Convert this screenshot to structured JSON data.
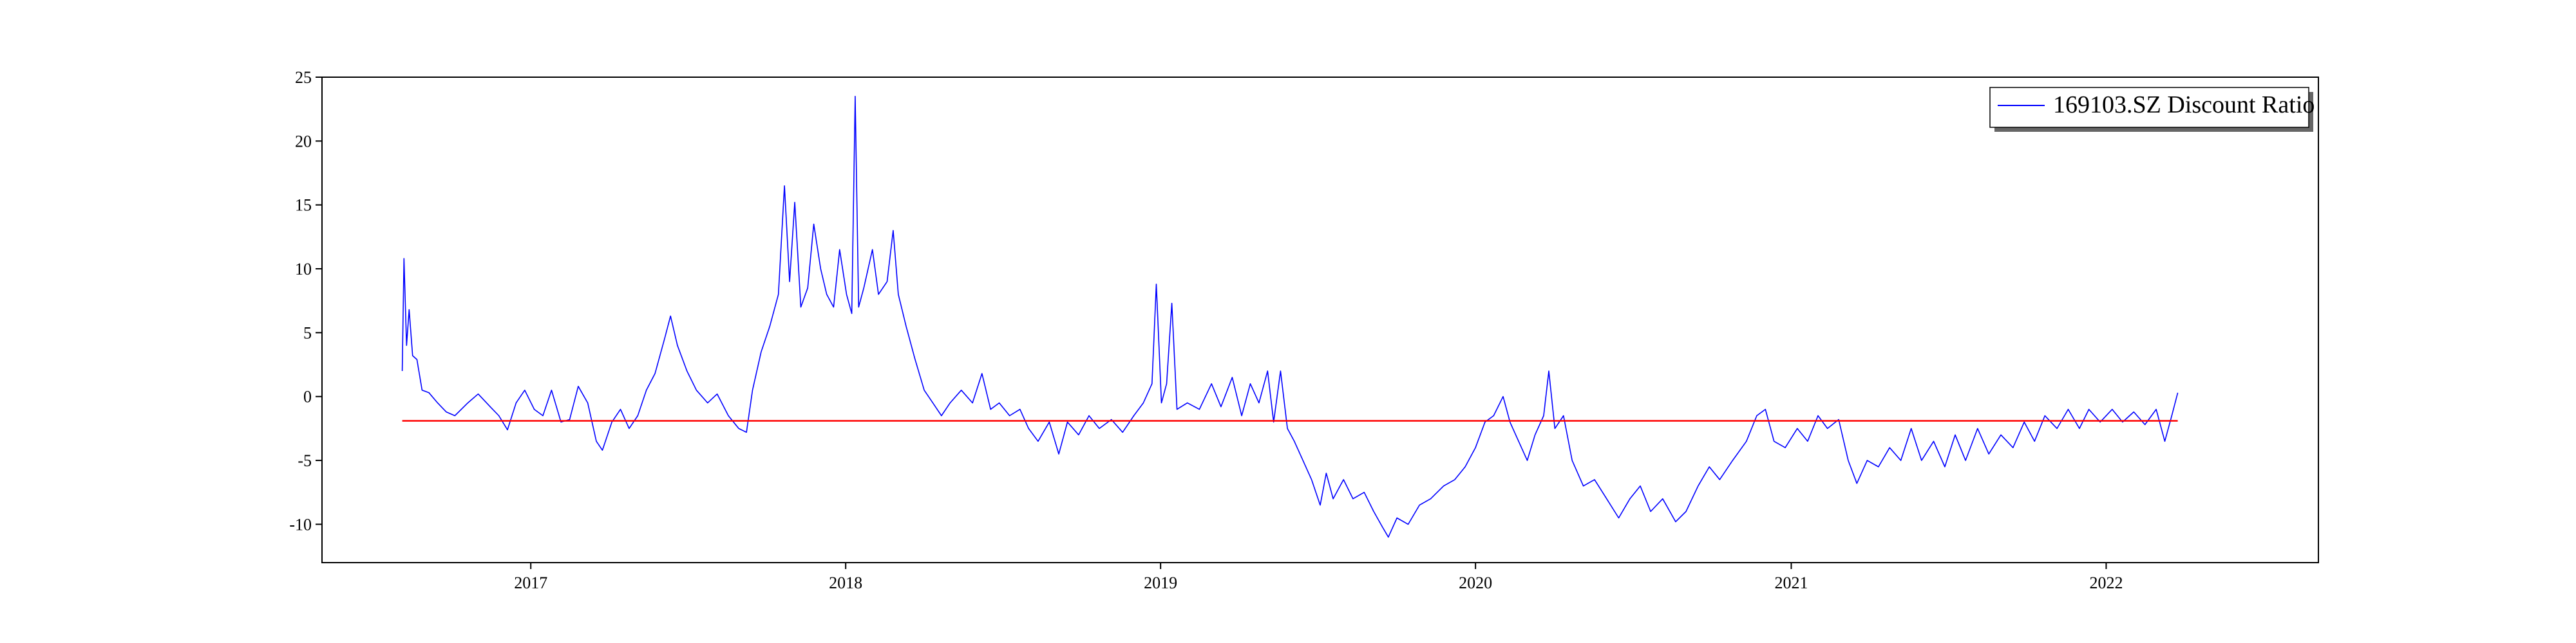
{
  "chart_data": {
    "type": "line",
    "title": "",
    "xlabel": "",
    "ylabel": "",
    "xlim": [
      "2016-05-04",
      "2022-09-04"
    ],
    "ylim": [
      -13,
      25
    ],
    "x_ticks": [
      {
        "label": "2017",
        "value": "2017-01-01"
      },
      {
        "label": "2018",
        "value": "2018-01-01"
      },
      {
        "label": "2019",
        "value": "2019-01-01"
      },
      {
        "label": "2020",
        "value": "2020-01-01"
      },
      {
        "label": "2021",
        "value": "2021-01-01"
      },
      {
        "label": "2022",
        "value": "2022-01-01"
      }
    ],
    "y_ticks": [
      25,
      20,
      15,
      10,
      5,
      0,
      -5,
      -10
    ],
    "grid": false,
    "legend": {
      "position": "upper-right",
      "entries": [
        "169103.SZ Discount Ratio"
      ]
    },
    "series": [
      {
        "name": "169103.SZ Discount Ratio",
        "color": "#0000ff",
        "type": "line",
        "points": [
          [
            "2016-08-05",
            2.0
          ],
          [
            "2016-08-07",
            10.8
          ],
          [
            "2016-08-10",
            4.0
          ],
          [
            "2016-08-13",
            6.8
          ],
          [
            "2016-08-17",
            3.2
          ],
          [
            "2016-08-22",
            2.9
          ],
          [
            "2016-08-28",
            0.5
          ],
          [
            "2016-09-05",
            0.3
          ],
          [
            "2016-09-15",
            -0.5
          ],
          [
            "2016-09-25",
            -1.2
          ],
          [
            "2016-10-05",
            -1.5
          ],
          [
            "2016-10-20",
            -0.5
          ],
          [
            "2016-11-01",
            0.2
          ],
          [
            "2016-11-15",
            -0.8
          ],
          [
            "2016-11-25",
            -1.5
          ],
          [
            "2016-12-05",
            -2.6
          ],
          [
            "2016-12-15",
            -0.5
          ],
          [
            "2016-12-25",
            0.5
          ],
          [
            "2017-01-05",
            -1.0
          ],
          [
            "2017-01-15",
            -1.5
          ],
          [
            "2017-01-25",
            0.5
          ],
          [
            "2017-02-05",
            -2.0
          ],
          [
            "2017-02-15",
            -1.8
          ],
          [
            "2017-02-25",
            0.8
          ],
          [
            "2017-03-08",
            -0.5
          ],
          [
            "2017-03-18",
            -3.5
          ],
          [
            "2017-03-25",
            -4.2
          ],
          [
            "2017-04-05",
            -2.0
          ],
          [
            "2017-04-15",
            -1.0
          ],
          [
            "2017-04-25",
            -2.5
          ],
          [
            "2017-05-05",
            -1.5
          ],
          [
            "2017-05-15",
            0.5
          ],
          [
            "2017-05-25",
            1.8
          ],
          [
            "2017-06-05",
            4.5
          ],
          [
            "2017-06-12",
            6.3
          ],
          [
            "2017-06-20",
            4.0
          ],
          [
            "2017-07-01",
            2.0
          ],
          [
            "2017-07-12",
            0.5
          ],
          [
            "2017-07-25",
            -0.5
          ],
          [
            "2017-08-05",
            0.2
          ],
          [
            "2017-08-18",
            -1.5
          ],
          [
            "2017-08-30",
            -2.5
          ],
          [
            "2017-09-08",
            -2.8
          ],
          [
            "2017-09-15",
            0.5
          ],
          [
            "2017-09-25",
            3.5
          ],
          [
            "2017-10-05",
            5.5
          ],
          [
            "2017-10-15",
            8.0
          ],
          [
            "2017-10-22",
            16.5
          ],
          [
            "2017-10-28",
            9.0
          ],
          [
            "2017-11-03",
            15.2
          ],
          [
            "2017-11-10",
            7.0
          ],
          [
            "2017-11-18",
            8.5
          ],
          [
            "2017-11-25",
            13.5
          ],
          [
            "2017-12-03",
            10.0
          ],
          [
            "2017-12-10",
            8.0
          ],
          [
            "2017-12-18",
            7.0
          ],
          [
            "2017-12-25",
            11.5
          ],
          [
            "2018-01-02",
            8.0
          ],
          [
            "2018-01-08",
            6.5
          ],
          [
            "2018-01-12",
            23.5
          ],
          [
            "2018-01-16",
            7.0
          ],
          [
            "2018-01-22",
            8.5
          ],
          [
            "2018-02-01",
            11.5
          ],
          [
            "2018-02-08",
            8.0
          ],
          [
            "2018-02-18",
            9.0
          ],
          [
            "2018-02-25",
            13.0
          ],
          [
            "2018-03-03",
            8.0
          ],
          [
            "2018-03-12",
            5.5
          ],
          [
            "2018-03-22",
            3.0
          ],
          [
            "2018-04-02",
            0.5
          ],
          [
            "2018-04-12",
            -0.5
          ],
          [
            "2018-04-22",
            -1.5
          ],
          [
            "2018-05-02",
            -0.5
          ],
          [
            "2018-05-15",
            0.5
          ],
          [
            "2018-05-28",
            -0.5
          ],
          [
            "2018-06-08",
            1.8
          ],
          [
            "2018-06-18",
            -1.0
          ],
          [
            "2018-06-28",
            -0.5
          ],
          [
            "2018-07-10",
            -1.5
          ],
          [
            "2018-07-22",
            -1.0
          ],
          [
            "2018-08-01",
            -2.5
          ],
          [
            "2018-08-12",
            -3.5
          ],
          [
            "2018-08-25",
            -2.0
          ],
          [
            "2018-09-05",
            -4.5
          ],
          [
            "2018-09-15",
            -2.0
          ],
          [
            "2018-09-28",
            -3.0
          ],
          [
            "2018-10-10",
            -1.5
          ],
          [
            "2018-10-22",
            -2.5
          ],
          [
            "2018-11-05",
            -1.8
          ],
          [
            "2018-11-18",
            -2.8
          ],
          [
            "2018-12-01",
            -1.5
          ],
          [
            "2018-12-12",
            -0.5
          ],
          [
            "2018-12-22",
            1.0
          ],
          [
            "2018-12-27",
            8.8
          ],
          [
            "2019-01-02",
            -0.5
          ],
          [
            "2019-01-08",
            1.0
          ],
          [
            "2019-01-14",
            7.3
          ],
          [
            "2019-01-20",
            -1.0
          ],
          [
            "2019-02-01",
            -0.5
          ],
          [
            "2019-02-15",
            -1.0
          ],
          [
            "2019-03-01",
            1.0
          ],
          [
            "2019-03-12",
            -0.8
          ],
          [
            "2019-03-25",
            1.5
          ],
          [
            "2019-04-05",
            -1.5
          ],
          [
            "2019-04-15",
            1.0
          ],
          [
            "2019-04-25",
            -0.5
          ],
          [
            "2019-05-05",
            2.0
          ],
          [
            "2019-05-12",
            -2.0
          ],
          [
            "2019-05-20",
            2.0
          ],
          [
            "2019-05-28",
            -2.5
          ],
          [
            "2019-06-05",
            -3.5
          ],
          [
            "2019-06-15",
            -5.0
          ],
          [
            "2019-06-25",
            -6.5
          ],
          [
            "2019-07-05",
            -8.5
          ],
          [
            "2019-07-12",
            -6.0
          ],
          [
            "2019-07-20",
            -8.0
          ],
          [
            "2019-08-01",
            -6.5
          ],
          [
            "2019-08-12",
            -8.0
          ],
          [
            "2019-08-25",
            -7.5
          ],
          [
            "2019-09-05",
            -9.0
          ],
          [
            "2019-09-15",
            -10.2
          ],
          [
            "2019-09-22",
            -11.0
          ],
          [
            "2019-10-02",
            -9.5
          ],
          [
            "2019-10-15",
            -10.0
          ],
          [
            "2019-10-28",
            -8.5
          ],
          [
            "2019-11-10",
            -8.0
          ],
          [
            "2019-11-25",
            -7.0
          ],
          [
            "2019-12-08",
            -6.5
          ],
          [
            "2019-12-20",
            -5.5
          ],
          [
            "2020-01-01",
            -4.0
          ],
          [
            "2020-01-12",
            -2.0
          ],
          [
            "2020-01-22",
            -1.5
          ],
          [
            "2020-02-02",
            0.0
          ],
          [
            "2020-02-10",
            -2.0
          ],
          [
            "2020-02-20",
            -3.5
          ],
          [
            "2020-03-01",
            -5.0
          ],
          [
            "2020-03-10",
            -3.0
          ],
          [
            "2020-03-20",
            -1.5
          ],
          [
            "2020-03-26",
            2.0
          ],
          [
            "2020-04-02",
            -2.5
          ],
          [
            "2020-04-12",
            -1.5
          ],
          [
            "2020-04-22",
            -5.0
          ],
          [
            "2020-05-05",
            -7.0
          ],
          [
            "2020-05-18",
            -6.5
          ],
          [
            "2020-06-01",
            -8.0
          ],
          [
            "2020-06-15",
            -9.5
          ],
          [
            "2020-06-28",
            -8.0
          ],
          [
            "2020-07-10",
            -7.0
          ],
          [
            "2020-07-22",
            -9.0
          ],
          [
            "2020-08-05",
            -8.0
          ],
          [
            "2020-08-20",
            -9.8
          ],
          [
            "2020-09-01",
            -9.0
          ],
          [
            "2020-09-15",
            -7.0
          ],
          [
            "2020-09-28",
            -5.5
          ],
          [
            "2020-10-10",
            -6.5
          ],
          [
            "2020-10-25",
            -5.0
          ],
          [
            "2020-11-10",
            -3.5
          ],
          [
            "2020-11-22",
            -1.5
          ],
          [
            "2020-12-02",
            -1.0
          ],
          [
            "2020-12-12",
            -3.5
          ],
          [
            "2020-12-25",
            -4.0
          ],
          [
            "2021-01-08",
            -2.5
          ],
          [
            "2021-01-20",
            -3.5
          ],
          [
            "2021-02-01",
            -1.5
          ],
          [
            "2021-02-12",
            -2.5
          ],
          [
            "2021-02-25",
            -1.8
          ],
          [
            "2021-03-08",
            -5.0
          ],
          [
            "2021-03-18",
            -6.8
          ],
          [
            "2021-03-30",
            -5.0
          ],
          [
            "2021-04-12",
            -5.5
          ],
          [
            "2021-04-25",
            -4.0
          ],
          [
            "2021-05-08",
            -5.0
          ],
          [
            "2021-05-20",
            -2.5
          ],
          [
            "2021-06-01",
            -5.0
          ],
          [
            "2021-06-15",
            -3.5
          ],
          [
            "2021-06-28",
            -5.5
          ],
          [
            "2021-07-10",
            -3.0
          ],
          [
            "2021-07-22",
            -5.0
          ],
          [
            "2021-08-05",
            -2.5
          ],
          [
            "2021-08-18",
            -4.5
          ],
          [
            "2021-09-01",
            -3.0
          ],
          [
            "2021-09-15",
            -4.0
          ],
          [
            "2021-09-28",
            -2.0
          ],
          [
            "2021-10-10",
            -3.5
          ],
          [
            "2021-10-22",
            -1.5
          ],
          [
            "2021-11-05",
            -2.5
          ],
          [
            "2021-11-18",
            -1.0
          ],
          [
            "2021-12-01",
            -2.5
          ],
          [
            "2021-12-12",
            -1.0
          ],
          [
            "2021-12-25",
            -2.0
          ],
          [
            "2022-01-08",
            -1.0
          ],
          [
            "2022-01-20",
            -2.0
          ],
          [
            "2022-02-02",
            -1.2
          ],
          [
            "2022-02-15",
            -2.2
          ],
          [
            "2022-02-28",
            -1.0
          ],
          [
            "2022-03-10",
            -3.5
          ],
          [
            "2022-03-18",
            -1.5
          ],
          [
            "2022-03-25",
            0.3
          ]
        ]
      },
      {
        "color": "#ff0000",
        "type": "line",
        "points": [
          [
            "2016-08-05",
            -1.9
          ],
          [
            "2022-03-25",
            -1.9
          ]
        ]
      }
    ]
  }
}
